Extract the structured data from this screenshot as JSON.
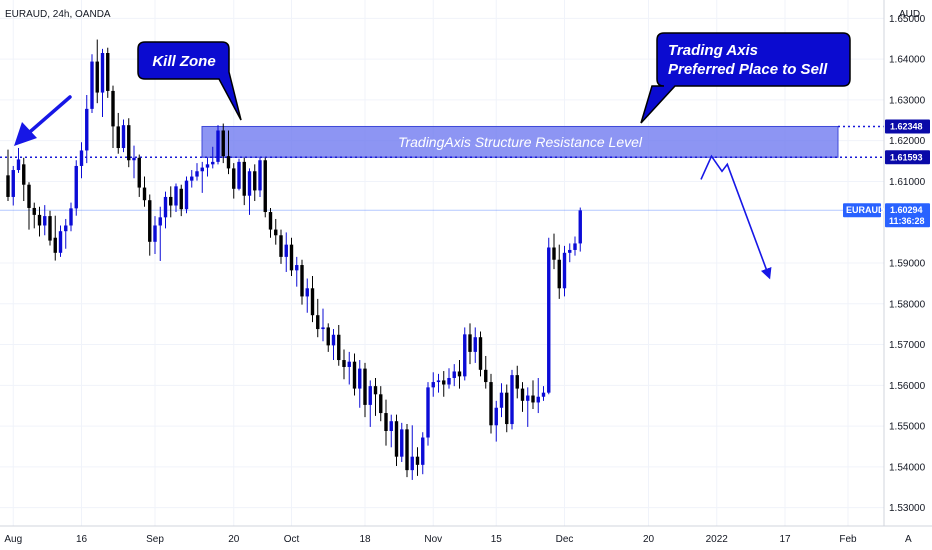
{
  "chart_data": {
    "type": "candlestick",
    "title": "EURAUD, 24h, OANDA",
    "currency": "AUD",
    "symbol": "EURAUD",
    "current_price": "1.60294",
    "countdown": "11:36:28",
    "ylim": [
      1.5255,
      1.6545
    ],
    "y_ticks": [
      "1.65000",
      "1.64000",
      "1.63000",
      "1.62000",
      "1.61000",
      "1.59000",
      "1.58000",
      "1.57000",
      "1.56000",
      "1.55000",
      "1.54000",
      "1.53000"
    ],
    "x_ticks": [
      "Aug",
      "16",
      "Sep",
      "20",
      "Oct",
      "18",
      "Nov",
      "15",
      "Dec",
      "20",
      "2022",
      "17",
      "Feb"
    ],
    "price_labels": [
      "1.62348",
      "1.61593"
    ],
    "zone": {
      "top": 1.62348,
      "bottom": 1.61593,
      "label": "TradingAxis Structure Resistance Level"
    },
    "callouts": [
      {
        "name": "kill-zone",
        "lines": [
          "Kill Zone"
        ]
      },
      {
        "name": "sell-note",
        "lines": [
          "Trading Axis",
          "Preferred Place to Sell"
        ]
      }
    ],
    "projection": [
      {
        "day": 132,
        "price": 1.6105
      },
      {
        "day": 134,
        "price": 1.6162
      },
      {
        "day": 136,
        "price": 1.6125
      },
      {
        "day": 137,
        "price": 1.6142
      },
      {
        "day": 145,
        "price": 1.5865
      }
    ],
    "candles": [
      [
        0,
        1.6115,
        1.6178,
        1.6052,
        1.6062
      ],
      [
        1,
        1.6062,
        1.6138,
        1.6041,
        1.6128
      ],
      [
        2,
        1.6128,
        1.6182,
        1.6121,
        1.6154
      ],
      [
        3,
        1.6142,
        1.6158,
        1.6052,
        1.6092
      ],
      [
        4,
        1.6092,
        1.6098,
        1.5982,
        1.6035
      ],
      [
        5,
        1.6035,
        1.6048,
        1.5985,
        1.6018
      ],
      [
        6,
        1.6018,
        1.6038,
        1.5965,
        1.5992
      ],
      [
        7,
        1.5992,
        1.6042,
        1.5968,
        1.6015
      ],
      [
        8,
        1.6015,
        1.6028,
        1.5943,
        1.5955
      ],
      [
        9,
        1.5962,
        1.6016,
        1.5906,
        1.5925
      ],
      [
        10,
        1.5925,
        1.5992,
        1.5915,
        1.5978
      ],
      [
        11,
        1.5978,
        1.6008,
        1.5935,
        1.5992
      ],
      [
        12,
        1.5992,
        1.6048,
        1.5978,
        1.6034
      ],
      [
        13,
        1.6034,
        1.6152,
        1.6016,
        1.6138
      ],
      [
        14,
        1.6138,
        1.6196,
        1.6108,
        1.6176
      ],
      [
        15,
        1.6176,
        1.6312,
        1.6145,
        1.6278
      ],
      [
        16,
        1.6278,
        1.6412,
        1.6268,
        1.6394
      ],
      [
        17,
        1.6394,
        1.6448,
        1.6292,
        1.6318
      ],
      [
        18,
        1.6318,
        1.6425,
        1.6258,
        1.6415
      ],
      [
        19,
        1.6415,
        1.6428,
        1.6305,
        1.6322
      ],
      [
        20,
        1.6322,
        1.6335,
        1.6182,
        1.6235
      ],
      [
        21,
        1.6235,
        1.6268,
        1.6168,
        1.6182
      ],
      [
        22,
        1.6182,
        1.6252,
        1.6172,
        1.6238
      ],
      [
        23,
        1.6238,
        1.6255,
        1.6135,
        1.6152
      ],
      [
        24,
        1.6152,
        1.6188,
        1.6108,
        1.6158
      ],
      [
        25,
        1.6158,
        1.6166,
        1.6062,
        1.6085
      ],
      [
        26,
        1.6085,
        1.6112,
        1.6038,
        1.6054
      ],
      [
        27,
        1.6054,
        1.6068,
        1.5918,
        1.5952
      ],
      [
        28,
        1.5952,
        1.6015,
        1.5922,
        1.5992
      ],
      [
        29,
        1.5992,
        1.6038,
        1.5905,
        1.6012
      ],
      [
        30,
        1.6012,
        1.6075,
        1.5985,
        1.6062
      ],
      [
        31,
        1.6062,
        1.6088,
        1.6012,
        1.6041
      ],
      [
        32,
        1.6041,
        1.6095,
        1.6025,
        1.6088
      ],
      [
        33,
        1.6082,
        1.6092,
        1.6015,
        1.6032
      ],
      [
        34,
        1.6032,
        1.6112,
        1.6022,
        1.6102
      ],
      [
        35,
        1.6102,
        1.6128,
        1.6085,
        1.6112
      ],
      [
        36,
        1.6112,
        1.6145,
        1.6102,
        1.6125
      ],
      [
        37,
        1.6125,
        1.6148,
        1.6072,
        1.6134
      ],
      [
        38,
        1.6134,
        1.6158,
        1.6112,
        1.6142
      ],
      [
        39,
        1.6142,
        1.6185,
        1.6132,
        1.6148
      ],
      [
        40,
        1.6148,
        1.6238,
        1.6142,
        1.6225
      ],
      [
        41,
        1.6225,
        1.6242,
        1.6145,
        1.6162
      ],
      [
        42,
        1.6162,
        1.6225,
        1.6118,
        1.6132
      ],
      [
        43,
        1.6132,
        1.6145,
        1.6058,
        1.6082
      ],
      [
        44,
        1.6082,
        1.6156,
        1.6078,
        1.6148
      ],
      [
        45,
        1.6148,
        1.6158,
        1.6042,
        1.6065
      ],
      [
        46,
        1.6065,
        1.6132,
        1.6018,
        1.6125
      ],
      [
        47,
        1.6125,
        1.6142,
        1.6052,
        1.6078
      ],
      [
        48,
        1.6078,
        1.6158,
        1.6062,
        1.6152
      ],
      [
        49,
        1.6152,
        1.6158,
        1.6012,
        1.6025
      ],
      [
        50,
        1.6025,
        1.6035,
        1.5962,
        1.5982
      ],
      [
        51,
        1.5982,
        1.6008,
        1.5945,
        1.5968
      ],
      [
        52,
        1.5968,
        1.5982,
        1.5898,
        1.5915
      ],
      [
        53,
        1.5915,
        1.5975,
        1.5878,
        1.5945
      ],
      [
        54,
        1.5945,
        1.5962,
        1.5868,
        1.5882
      ],
      [
        55,
        1.5882,
        1.5915,
        1.5842,
        1.5895
      ],
      [
        56,
        1.5895,
        1.5908,
        1.5798,
        1.5818
      ],
      [
        57,
        1.5818,
        1.5862,
        1.5778,
        1.5838
      ],
      [
        58,
        1.5838,
        1.5868,
        1.5755,
        1.5772
      ],
      [
        59,
        1.5772,
        1.5812,
        1.5718,
        1.5738
      ],
      [
        60,
        1.5738,
        1.5788,
        1.5708,
        1.5742
      ],
      [
        61,
        1.5742,
        1.5752,
        1.5682,
        1.5698
      ],
      [
        62,
        1.5698,
        1.5738,
        1.5662,
        1.5724
      ],
      [
        63,
        1.5724,
        1.5748,
        1.5648,
        1.5662
      ],
      [
        64,
        1.5662,
        1.5688,
        1.5615,
        1.5645
      ],
      [
        65,
        1.5645,
        1.5682,
        1.5602,
        1.5658
      ],
      [
        66,
        1.5658,
        1.5678,
        1.5575,
        1.5592
      ],
      [
        67,
        1.5592,
        1.5662,
        1.5545,
        1.5641
      ],
      [
        68,
        1.5641,
        1.5655,
        1.5522,
        1.5552
      ],
      [
        69,
        1.5552,
        1.5612,
        1.5498,
        1.5598
      ],
      [
        70,
        1.5598,
        1.5618,
        1.5525,
        1.5578
      ],
      [
        71,
        1.5578,
        1.5598,
        1.5512,
        1.5532
      ],
      [
        72,
        1.5532,
        1.5565,
        1.5452,
        1.5488
      ],
      [
        73,
        1.5488,
        1.5528,
        1.5448,
        1.5512
      ],
      [
        74,
        1.5512,
        1.5528,
        1.5402,
        1.5425
      ],
      [
        75,
        1.5425,
        1.5508,
        1.5412,
        1.5492
      ],
      [
        76,
        1.5492,
        1.5505,
        1.5375,
        1.5392
      ],
      [
        77,
        1.5392,
        1.5502,
        1.5368,
        1.5425
      ],
      [
        78,
        1.5425,
        1.5448,
        1.5378,
        1.5405
      ],
      [
        79,
        1.5405,
        1.5485,
        1.5382,
        1.5472
      ],
      [
        80,
        1.5472,
        1.5608,
        1.5452,
        1.5595
      ],
      [
        81,
        1.5595,
        1.5632,
        1.5572,
        1.5608
      ],
      [
        82,
        1.5608,
        1.5628,
        1.5582,
        1.5612
      ],
      [
        83,
        1.5612,
        1.5635,
        1.5572,
        1.5602
      ],
      [
        84,
        1.5602,
        1.5642,
        1.5592,
        1.5618
      ],
      [
        85,
        1.5618,
        1.5652,
        1.5598,
        1.5634
      ],
      [
        86,
        1.5634,
        1.5662,
        1.5592,
        1.5622
      ],
      [
        87,
        1.5622,
        1.5742,
        1.5612,
        1.5725
      ],
      [
        88,
        1.5725,
        1.5752,
        1.5652,
        1.5682
      ],
      [
        89,
        1.5682,
        1.5742,
        1.5655,
        1.5718
      ],
      [
        90,
        1.5718,
        1.5732,
        1.5622,
        1.5638
      ],
      [
        91,
        1.5638,
        1.5672,
        1.5592,
        1.5608
      ],
      [
        92,
        1.5608,
        1.5628,
        1.5482,
        1.5502
      ],
      [
        93,
        1.5502,
        1.5562,
        1.5462,
        1.5545
      ],
      [
        94,
        1.5545,
        1.5605,
        1.5522,
        1.5582
      ],
      [
        95,
        1.5582,
        1.5602,
        1.5485,
        1.5505
      ],
      [
        96,
        1.5505,
        1.5638,
        1.5492,
        1.5625
      ],
      [
        97,
        1.5625,
        1.5648,
        1.5568,
        1.5592
      ],
      [
        98,
        1.5592,
        1.5608,
        1.5535,
        1.5562
      ],
      [
        99,
        1.5562,
        1.5595,
        1.5498,
        1.5575
      ],
      [
        100,
        1.5575,
        1.5612,
        1.5542,
        1.5558
      ],
      [
        101,
        1.5558,
        1.5618,
        1.5532,
        1.5572
      ],
      [
        102,
        1.5572,
        1.5598,
        1.5562,
        1.5582
      ],
      [
        103,
        1.5582,
        1.5962,
        1.5578,
        1.5938
      ],
      [
        104,
        1.5938,
        1.5972,
        1.5885,
        1.5908
      ],
      [
        105,
        1.5908,
        1.5945,
        1.5812,
        1.5838
      ],
      [
        106,
        1.5838,
        1.5942,
        1.5818,
        1.5925
      ],
      [
        107,
        1.5925,
        1.5948,
        1.5902,
        1.5932
      ],
      [
        108,
        1.5932,
        1.5965,
        1.5918,
        1.5948
      ],
      [
        109,
        1.5948,
        1.6036,
        1.5928,
        1.6029
      ]
    ]
  }
}
